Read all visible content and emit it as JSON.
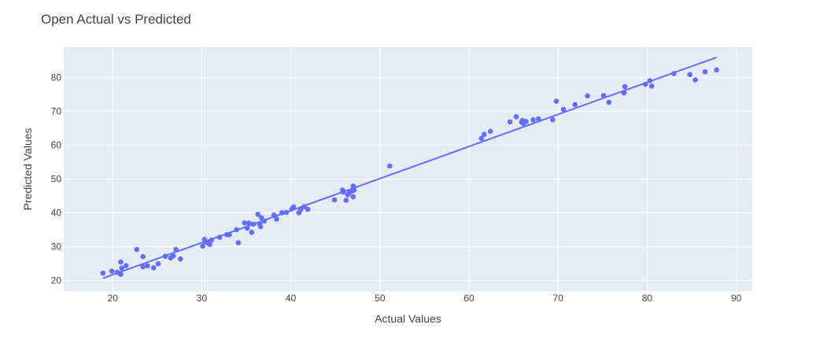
{
  "chart_data": {
    "type": "scatter",
    "title": "Open Actual vs Predicted",
    "xlabel": "Actual Values",
    "ylabel": "Predicted Values",
    "xlim": [
      14.5,
      91.8
    ],
    "ylim": [
      16.8,
      89.0
    ],
    "x_ticks": [
      20,
      30,
      40,
      50,
      60,
      70,
      80,
      90
    ],
    "y_ticks": [
      20,
      30,
      40,
      50,
      60,
      70,
      80
    ],
    "grid": true,
    "legend": "none",
    "colors": {
      "plot_bg": "#e5ecf6",
      "marker": "#636efa",
      "grid": "#ffffff"
    },
    "series": [
      {
        "mode": "markers",
        "points": [
          [
            18.9,
            22.1
          ],
          [
            19.9,
            22.7
          ],
          [
            20.5,
            22.4
          ],
          [
            20.9,
            21.8
          ],
          [
            20.9,
            25.4
          ],
          [
            21.0,
            23.6
          ],
          [
            21.5,
            24.3
          ],
          [
            22.7,
            29.1
          ],
          [
            23.4,
            27.0
          ],
          [
            23.4,
            24.0
          ],
          [
            23.9,
            24.3
          ],
          [
            24.6,
            23.7
          ],
          [
            25.1,
            24.9
          ],
          [
            25.9,
            27.1
          ],
          [
            26.5,
            26.6
          ],
          [
            26.8,
            27.2
          ],
          [
            27.1,
            29.1
          ],
          [
            27.6,
            26.3
          ],
          [
            30.1,
            30.1
          ],
          [
            30.3,
            32.1
          ],
          [
            30.4,
            31.4
          ],
          [
            30.7,
            31.0
          ],
          [
            30.9,
            30.6
          ],
          [
            31.1,
            31.9
          ],
          [
            32.0,
            32.7
          ],
          [
            32.8,
            33.5
          ],
          [
            33.1,
            33.5
          ],
          [
            33.9,
            35.0
          ],
          [
            34.1,
            31.1
          ],
          [
            34.8,
            37.0
          ],
          [
            35.1,
            35.4
          ],
          [
            35.3,
            36.9
          ],
          [
            35.6,
            34.2
          ],
          [
            35.8,
            36.6
          ],
          [
            36.3,
            39.5
          ],
          [
            36.5,
            36.6
          ],
          [
            36.6,
            35.9
          ],
          [
            36.7,
            38.5
          ],
          [
            37.0,
            37.5
          ],
          [
            38.1,
            39.3
          ],
          [
            38.4,
            38.1
          ],
          [
            39.0,
            40.0
          ],
          [
            39.5,
            40.1
          ],
          [
            40.1,
            41.1
          ],
          [
            40.3,
            41.7
          ],
          [
            40.9,
            40.0
          ],
          [
            41.1,
            40.9
          ],
          [
            41.5,
            41.8
          ],
          [
            41.9,
            41.0
          ],
          [
            44.9,
            43.8
          ],
          [
            45.8,
            46.7
          ],
          [
            45.9,
            46.1
          ],
          [
            46.2,
            43.7
          ],
          [
            46.4,
            45.3
          ],
          [
            46.6,
            46.0
          ],
          [
            46.9,
            46.5
          ],
          [
            47.0,
            47.9
          ],
          [
            47.0,
            44.7
          ],
          [
            47.1,
            46.7
          ],
          [
            51.1,
            53.8
          ],
          [
            61.4,
            62.0
          ],
          [
            61.7,
            63.2
          ],
          [
            62.4,
            64.1
          ],
          [
            64.6,
            66.9
          ],
          [
            65.3,
            68.4
          ],
          [
            65.9,
            66.8
          ],
          [
            66.0,
            67.3
          ],
          [
            66.1,
            66.4
          ],
          [
            66.4,
            67.0
          ],
          [
            67.2,
            67.5
          ],
          [
            67.8,
            67.8
          ],
          [
            69.4,
            67.5
          ],
          [
            69.8,
            73.0
          ],
          [
            70.6,
            70.6
          ],
          [
            71.9,
            72.0
          ],
          [
            73.3,
            74.6
          ],
          [
            75.1,
            74.7
          ],
          [
            75.7,
            72.7
          ],
          [
            77.4,
            75.5
          ],
          [
            77.5,
            77.3
          ],
          [
            79.8,
            78.0
          ],
          [
            80.3,
            79.1
          ],
          [
            80.5,
            77.5
          ],
          [
            83.0,
            81.2
          ],
          [
            84.8,
            80.9
          ],
          [
            85.4,
            79.3
          ],
          [
            86.5,
            81.7
          ],
          [
            87.8,
            82.3
          ]
        ]
      },
      {
        "mode": "lines",
        "points": [
          [
            18.9,
            20.6
          ],
          [
            87.8,
            86.0
          ]
        ]
      }
    ]
  }
}
